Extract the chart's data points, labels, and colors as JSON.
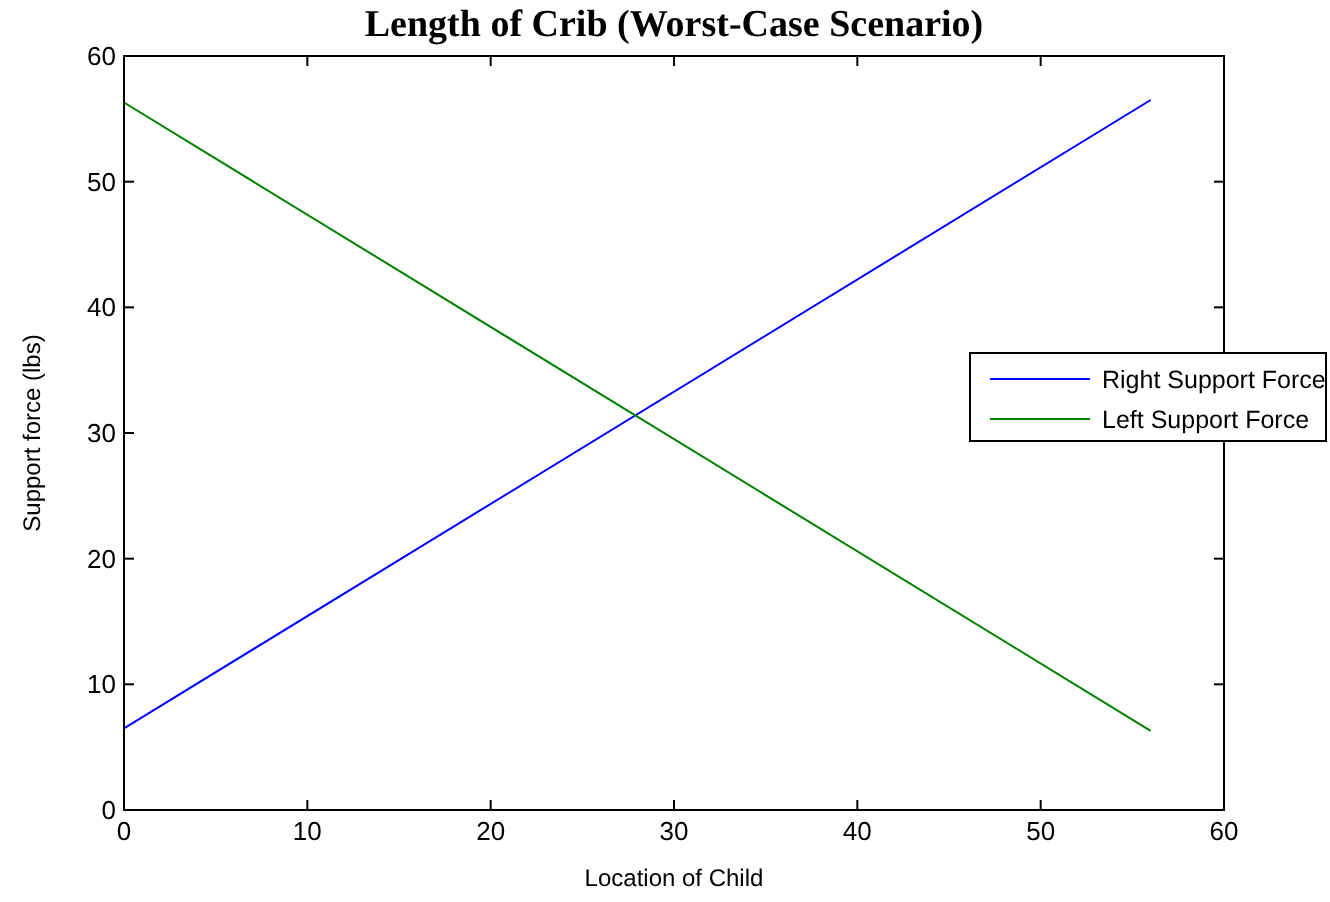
{
  "chart_data": {
    "type": "line",
    "title": "Length of Crib (Worst-Case Scenario)",
    "xlabel": "Location of Child",
    "ylabel": "Support force (lbs)",
    "x": [
      0,
      56
    ],
    "series": [
      {
        "name": "Right Support Force",
        "color": "#0000ff",
        "values": [
          6.5,
          56.5
        ]
      },
      {
        "name": "Left Support Force",
        "color": "#008000",
        "values": [
          56.3,
          6.3
        ]
      }
    ],
    "xlim": [
      0,
      60
    ],
    "ylim": [
      0,
      60
    ],
    "xticks": [
      0,
      10,
      20,
      30,
      40,
      50,
      60
    ],
    "yticks": [
      0,
      10,
      20,
      30,
      40,
      50,
      60
    ],
    "grid": false,
    "legend": "right"
  }
}
